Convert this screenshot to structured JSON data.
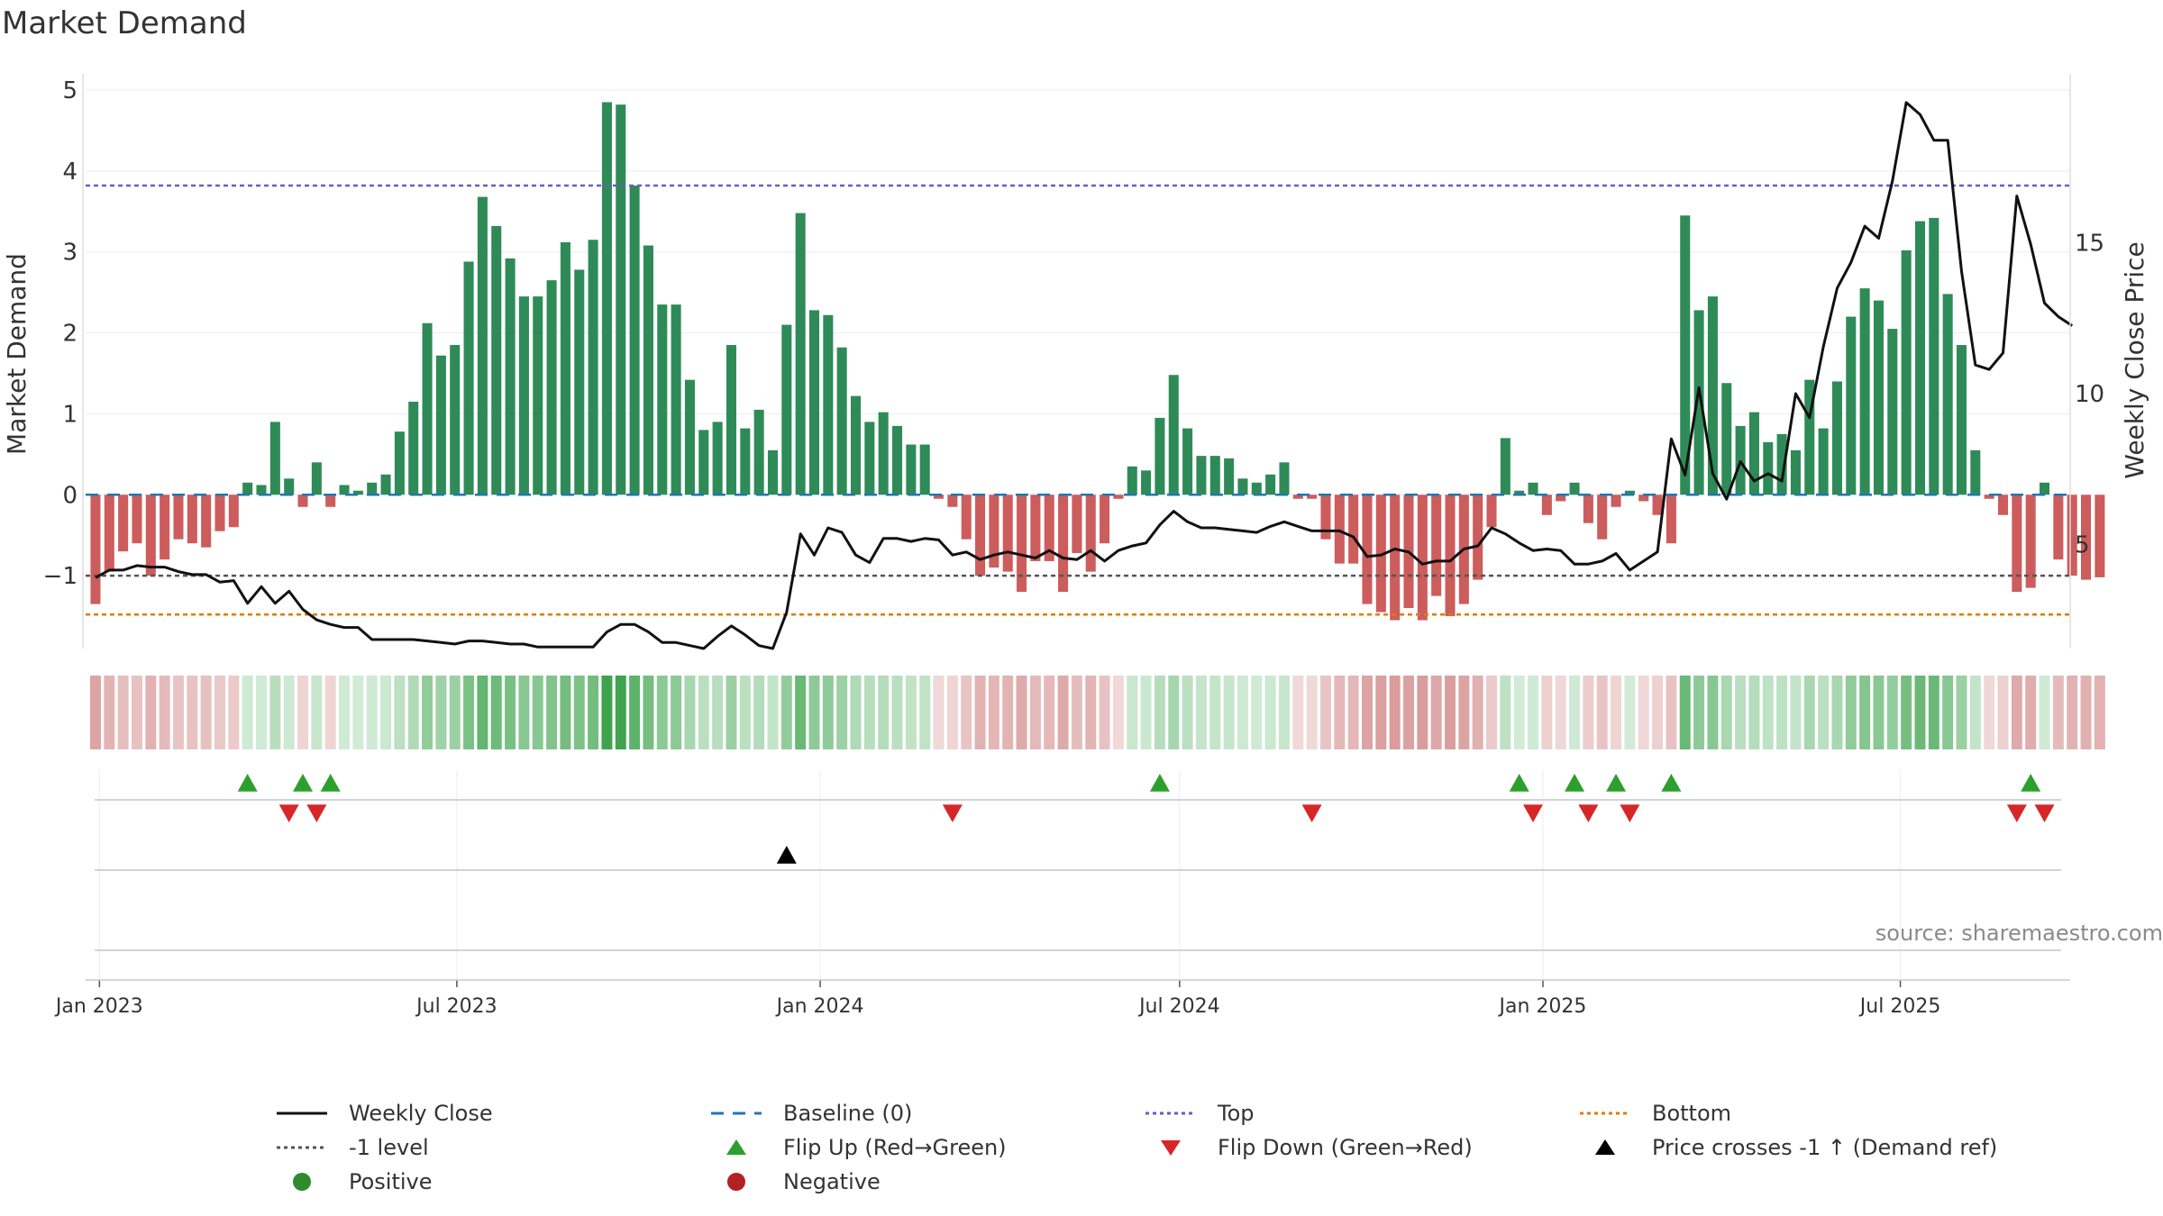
{
  "title": "Market Demand",
  "source": "source: sharemaestro.com",
  "colors": {
    "positive_bar": "#2e8b57",
    "negative_bar": "#cd5c5c",
    "price_line": "#111111",
    "baseline": "#1f77b4",
    "top_line": "#6a5acd",
    "bottom_line": "#e07b00",
    "minus_one_line": "#555555",
    "flip_up": "#2ca02c",
    "flip_down": "#d62728",
    "price_cross": "#000000",
    "positive_dot": "#2e8b2e",
    "negative_dot": "#b22222"
  },
  "legend": [
    {
      "key": "weekly_close",
      "label": "Weekly Close",
      "icon": "solid-line-icon"
    },
    {
      "key": "baseline",
      "label": "Baseline (0)",
      "icon": "dashed-line-icon"
    },
    {
      "key": "top",
      "label": "Top",
      "icon": "dotted-line-icon"
    },
    {
      "key": "bottom",
      "label": "Bottom",
      "icon": "dotted-line-icon"
    },
    {
      "key": "minus_one",
      "label": "-1 level",
      "icon": "dotted-line-icon"
    },
    {
      "key": "flip_up",
      "label": "Flip Up (Red→Green)",
      "icon": "triangle-up-icon"
    },
    {
      "key": "flip_down",
      "label": "Flip Down (Green→Red)",
      "icon": "triangle-down-icon"
    },
    {
      "key": "price_cross",
      "label": "Price crosses -1 ↑ (Demand ref)",
      "icon": "triangle-up-icon"
    },
    {
      "key": "positive",
      "label": "Positive",
      "icon": "circle-icon"
    },
    {
      "key": "negative",
      "label": "Negative",
      "icon": "circle-icon"
    }
  ],
  "chart_data": {
    "type": "bar",
    "title": "Market Demand",
    "ylabel": "Market Demand",
    "y2label": "Weekly Close Price",
    "ylim": [
      -1.9,
      5.2
    ],
    "y2lim": [
      1.55,
      20.6
    ],
    "yticks": [
      5,
      4,
      3,
      2,
      1,
      0,
      -1
    ],
    "ytick_labels": [
      "5",
      "4",
      "3",
      "2",
      "1",
      "0",
      "−1"
    ],
    "y2ticks": [
      15,
      10,
      5
    ],
    "y2tick_labels": [
      "15",
      "10",
      "5"
    ],
    "x_start": "2022-12-25",
    "x_end": "2025-09-25",
    "xtick_dates": [
      "2023-01-01",
      "2023-07-01",
      "2024-01-01",
      "2024-07-01",
      "2025-01-01",
      "2025-07-01"
    ],
    "xtick_labels": [
      "Jan 2023",
      "Jul 2023",
      "Jan 2024",
      "Jul 2024",
      "Jan 2025",
      "Jul 2025"
    ],
    "reference_lines": {
      "baseline": 0,
      "top": 3.82,
      "bottom": -1.48,
      "minus_one": -1.0
    },
    "bars_start": "2022-12-30",
    "bars_interval_days": 7,
    "demand": [
      -1.35,
      -0.95,
      -0.7,
      -0.6,
      -1.0,
      -0.8,
      -0.55,
      -0.6,
      -0.65,
      -0.45,
      -0.4,
      0.15,
      0.12,
      0.9,
      0.2,
      -0.15,
      0.4,
      -0.15,
      0.12,
      0.05,
      0.15,
      0.25,
      0.78,
      1.15,
      2.12,
      1.72,
      1.85,
      2.88,
      3.68,
      3.32,
      2.92,
      2.45,
      2.45,
      2.65,
      3.12,
      2.78,
      3.15,
      4.85,
      4.82,
      3.82,
      3.08,
      2.35,
      2.35,
      1.42,
      0.8,
      0.9,
      1.85,
      0.82,
      1.05,
      0.55,
      2.1,
      3.48,
      2.28,
      2.22,
      1.82,
      1.22,
      0.9,
      1.02,
      0.85,
      0.62,
      0.62,
      -0.05,
      -0.15,
      -0.55,
      -1.0,
      -0.9,
      -0.95,
      -1.2,
      -0.82,
      -0.82,
      -1.2,
      -0.72,
      -0.95,
      -0.6,
      -0.05,
      0.35,
      0.3,
      0.95,
      1.48,
      0.82,
      0.48,
      0.48,
      0.45,
      0.2,
      0.15,
      0.25,
      0.4,
      -0.05,
      -0.05,
      -0.55,
      -0.85,
      -0.85,
      -1.35,
      -1.45,
      -1.55,
      -1.4,
      -1.55,
      -1.25,
      -1.5,
      -1.35,
      -1.05,
      -0.4,
      0.7,
      0.05,
      0.15,
      -0.25,
      -0.08,
      0.15,
      -0.35,
      -0.55,
      -0.15,
      0.05,
      -0.08,
      -0.25,
      -0.6,
      3.45,
      2.28,
      2.45,
      1.38,
      0.85,
      1.02,
      0.65,
      0.75,
      0.55,
      1.42,
      0.82,
      1.4,
      2.2,
      2.55,
      2.4,
      2.05,
      3.02,
      3.38,
      3.42,
      2.48,
      1.85,
      0.55,
      -0.05,
      -0.25,
      -1.2,
      -1.15,
      0.15,
      -0.8,
      -1.0,
      -1.05,
      -1.02
    ],
    "close": [
      3.9,
      4.15,
      4.15,
      4.3,
      4.25,
      4.25,
      4.1,
      4.0,
      4.0,
      3.75,
      3.8,
      3.05,
      3.6,
      3.05,
      3.45,
      2.85,
      2.5,
      2.35,
      2.25,
      2.25,
      1.85,
      1.85,
      1.85,
      1.85,
      1.8,
      1.75,
      1.7,
      1.8,
      1.8,
      1.75,
      1.7,
      1.7,
      1.6,
      1.6,
      1.6,
      1.6,
      1.6,
      2.1,
      2.35,
      2.35,
      2.1,
      1.75,
      1.75,
      1.65,
      1.55,
      1.95,
      2.3,
      2.0,
      1.65,
      1.55,
      2.75,
      5.35,
      4.65,
      5.55,
      5.4,
      4.65,
      4.4,
      5.2,
      5.2,
      5.1,
      5.2,
      5.15,
      4.65,
      4.75,
      4.5,
      4.65,
      4.75,
      4.65,
      4.55,
      4.8,
      4.55,
      4.5,
      4.8,
      4.45,
      4.8,
      4.95,
      5.05,
      5.65,
      6.1,
      5.75,
      5.55,
      5.55,
      5.5,
      5.45,
      5.4,
      5.6,
      5.75,
      5.6,
      5.45,
      5.45,
      5.45,
      5.25,
      4.6,
      4.65,
      4.85,
      4.75,
      4.35,
      4.45,
      4.45,
      4.85,
      4.95,
      5.55,
      5.35,
      5.05,
      4.8,
      4.85,
      4.8,
      4.35,
      4.35,
      4.45,
      4.7,
      4.15,
      4.45,
      4.75,
      8.5,
      7.3,
      10.2,
      7.35,
      6.5,
      7.75,
      7.1,
      7.35,
      7.1,
      10.0,
      9.2,
      11.55,
      13.5,
      14.35,
      15.55,
      15.15,
      17.05,
      19.65,
      19.25,
      18.4,
      18.4,
      14.05,
      10.95,
      10.8,
      11.35,
      16.55,
      14.95,
      13.0,
      12.55,
      12.25
    ],
    "demand_strip_intensity_note": "strip shade follows demand value",
    "flip_up_dates": [
      "2023-03-17",
      "2023-04-14",
      "2023-04-28",
      "2024-06-21",
      "2024-12-20",
      "2025-01-17",
      "2025-02-07",
      "2025-03-07",
      "2025-09-05"
    ],
    "flip_down_dates": [
      "2023-04-07",
      "2023-04-21",
      "2024-03-08",
      "2024-09-06",
      "2024-12-27",
      "2025-01-24",
      "2025-02-14",
      "2025-08-29",
      "2025-09-12"
    ],
    "price_cross_dates": [
      "2023-12-15"
    ]
  }
}
